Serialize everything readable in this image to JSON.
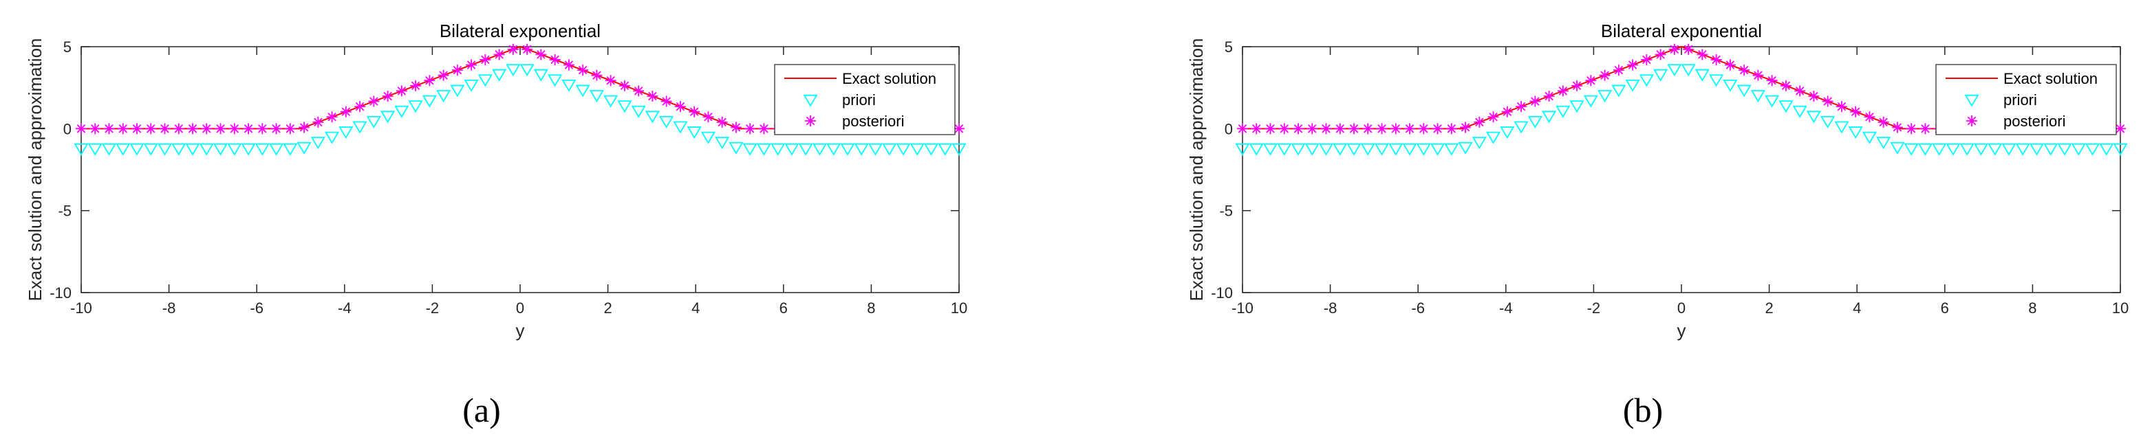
{
  "chart_data": [
    {
      "type": "line",
      "title": "Bilateral exponential",
      "xlabel": "y",
      "ylabel": "Exact solution and approximation",
      "xlim": [
        -10,
        10
      ],
      "ylim": [
        -10,
        5
      ],
      "xticks": [
        -10,
        -8,
        -6,
        -4,
        -2,
        0,
        2,
        4,
        6,
        8,
        10
      ],
      "yticks": [
        -10,
        -5,
        0,
        5
      ],
      "grid": false,
      "legend_position": "top-right",
      "caption": "(a)",
      "series": [
        {
          "name": "Exact solution",
          "style": "line",
          "color": "#ff0000",
          "x": [
            -10,
            -5,
            0,
            5,
            10
          ],
          "y": [
            0,
            0,
            5,
            0,
            0
          ]
        },
        {
          "name": "priori",
          "style": "triangle-down",
          "color": "#00ffff",
          "x": [
            -10,
            -5,
            0,
            5,
            10
          ],
          "y": [
            -1.2,
            -1.2,
            3.8,
            -1.2,
            -1.2
          ]
        },
        {
          "name": "posteriori",
          "style": "asterisk",
          "color": "#ff00ff",
          "x": [
            -10,
            -5,
            0,
            5,
            10
          ],
          "y": [
            0,
            0,
            5,
            0,
            0
          ]
        }
      ]
    },
    {
      "type": "line",
      "title": "Bilateral exponential",
      "xlabel": "y",
      "ylabel": "Exact solution and approximation",
      "xlim": [
        -10,
        10
      ],
      "ylim": [
        -10,
        5
      ],
      "xticks": [
        -10,
        -8,
        -6,
        -4,
        -2,
        0,
        2,
        4,
        6,
        8,
        10
      ],
      "yticks": [
        -10,
        -5,
        0,
        5
      ],
      "grid": false,
      "legend_position": "top-right",
      "caption": "(b)",
      "series": [
        {
          "name": "Exact solution",
          "style": "line",
          "color": "#ff0000",
          "x": [
            -10,
            -5,
            0,
            5,
            10
          ],
          "y": [
            0,
            0,
            5,
            0,
            0
          ]
        },
        {
          "name": "priori",
          "style": "triangle-down",
          "color": "#00ffff",
          "x": [
            -10,
            -5,
            0,
            5,
            10
          ],
          "y": [
            -1.2,
            -1.2,
            3.8,
            -1.2,
            -1.2
          ]
        },
        {
          "name": "posteriori",
          "style": "asterisk",
          "color": "#ff00ff",
          "x": [
            -10,
            -5,
            0,
            5,
            10
          ],
          "y": [
            0,
            0,
            5,
            0,
            0
          ]
        }
      ]
    }
  ]
}
